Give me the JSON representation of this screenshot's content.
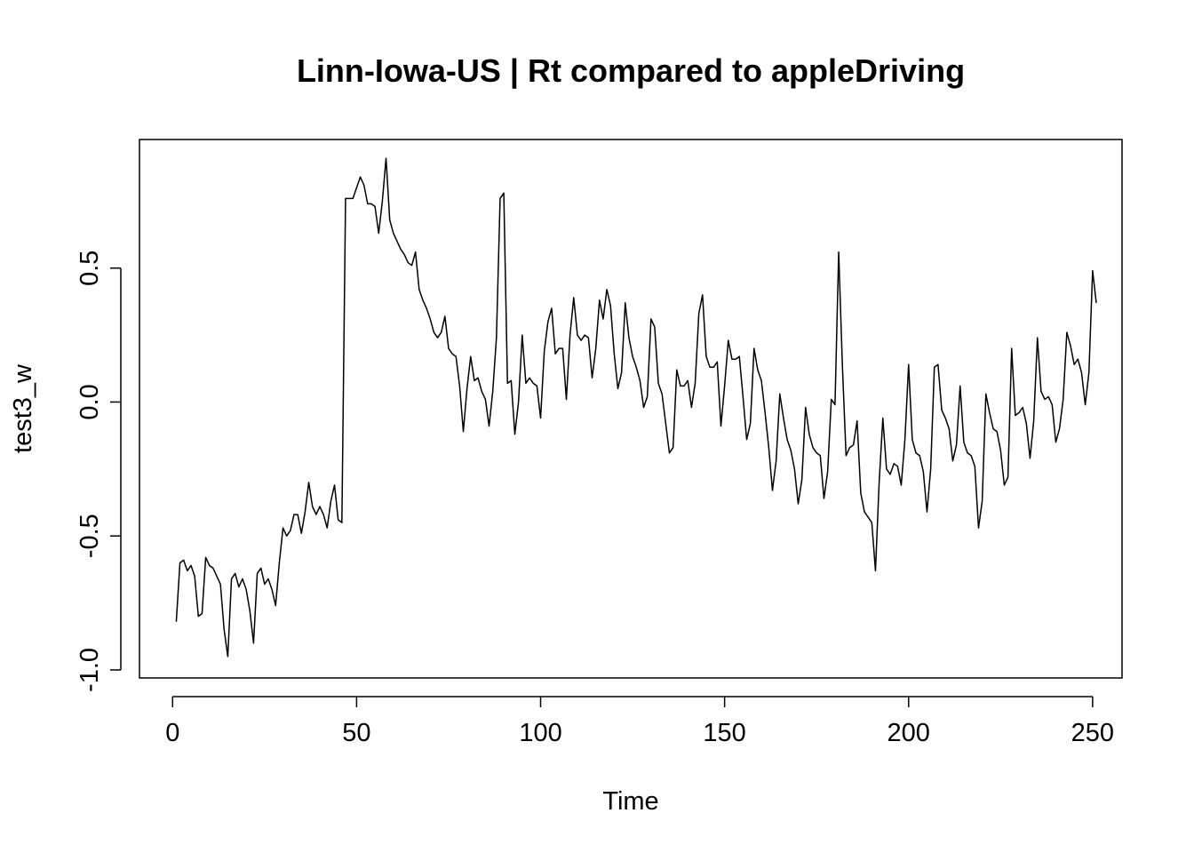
{
  "chart_data": {
    "type": "line",
    "title": "Linn-Iowa-US | Rt compared to appleDriving",
    "xlabel": "Time",
    "ylabel": "test3_w",
    "xlim": [
      -9,
      258
    ],
    "ylim": [
      -1.03,
      0.98
    ],
    "x_ticks": [
      0,
      50,
      100,
      150,
      200,
      250
    ],
    "x_tick_labels": [
      "0",
      "50",
      "100",
      "150",
      "200",
      "250"
    ],
    "y_ticks": [
      -1.0,
      -0.5,
      0.0,
      0.5
    ],
    "y_tick_labels": [
      "-1.0",
      "-0.5",
      "0.0",
      "0.5"
    ],
    "grid": false,
    "legend": "none",
    "line_color": "#000000",
    "x_start": 1,
    "series": [
      {
        "values": [
          -0.82,
          -0.6,
          -0.59,
          -0.63,
          -0.61,
          -0.65,
          -0.8,
          -0.79,
          -0.58,
          -0.61,
          -0.62,
          -0.65,
          -0.68,
          -0.85,
          -0.95,
          -0.66,
          -0.64,
          -0.69,
          -0.66,
          -0.7,
          -0.78,
          -0.9,
          -0.64,
          -0.62,
          -0.68,
          -0.66,
          -0.7,
          -0.76,
          -0.6,
          -0.47,
          -0.5,
          -0.48,
          -0.42,
          -0.42,
          -0.49,
          -0.41,
          -0.3,
          -0.39,
          -0.42,
          -0.39,
          -0.42,
          -0.47,
          -0.37,
          -0.31,
          -0.44,
          -0.45,
          0.76,
          0.76,
          0.76,
          0.8,
          0.84,
          0.81,
          0.74,
          0.74,
          0.73,
          0.63,
          0.75,
          0.91,
          0.68,
          0.63,
          0.6,
          0.57,
          0.55,
          0.52,
          0.51,
          0.56,
          0.42,
          0.38,
          0.35,
          0.31,
          0.26,
          0.24,
          0.26,
          0.32,
          0.2,
          0.18,
          0.17,
          0.06,
          -0.11,
          0.05,
          0.17,
          0.08,
          0.09,
          0.04,
          0.01,
          -0.09,
          0.04,
          0.24,
          0.76,
          0.78,
          0.07,
          0.08,
          -0.12,
          0.0,
          0.25,
          0.07,
          0.09,
          0.07,
          0.06,
          -0.06,
          0.19,
          0.3,
          0.35,
          0.18,
          0.2,
          0.2,
          0.01,
          0.25,
          0.39,
          0.25,
          0.23,
          0.25,
          0.24,
          0.09,
          0.2,
          0.38,
          0.31,
          0.42,
          0.36,
          0.18,
          0.05,
          0.11,
          0.37,
          0.24,
          0.17,
          0.13,
          0.08,
          -0.02,
          0.02,
          0.31,
          0.28,
          0.07,
          0.03,
          -0.08,
          -0.19,
          -0.17,
          0.12,
          0.06,
          0.06,
          0.08,
          -0.02,
          0.07,
          0.33,
          0.4,
          0.17,
          0.13,
          0.13,
          0.15,
          -0.09,
          0.06,
          0.23,
          0.16,
          0.16,
          0.17,
          0.02,
          -0.14,
          -0.08,
          0.2,
          0.12,
          0.08,
          -0.04,
          -0.17,
          -0.33,
          -0.22,
          0.03,
          -0.06,
          -0.14,
          -0.18,
          -0.25,
          -0.38,
          -0.29,
          -0.02,
          -0.12,
          -0.17,
          -0.19,
          -0.2,
          -0.36,
          -0.26,
          0.01,
          -0.01,
          0.56,
          0.14,
          -0.2,
          -0.17,
          -0.16,
          -0.07,
          -0.34,
          -0.41,
          -0.43,
          -0.45,
          -0.63,
          -0.3,
          -0.06,
          -0.25,
          -0.27,
          -0.23,
          -0.24,
          -0.31,
          -0.14,
          0.14,
          -0.14,
          -0.19,
          -0.2,
          -0.26,
          -0.41,
          -0.25,
          0.13,
          0.14,
          -0.03,
          -0.06,
          -0.1,
          -0.22,
          -0.16,
          0.06,
          -0.15,
          -0.19,
          -0.2,
          -0.24,
          -0.47,
          -0.37,
          0.03,
          -0.04,
          -0.1,
          -0.11,
          -0.18,
          -0.31,
          -0.28,
          0.2,
          -0.05,
          -0.04,
          -0.02,
          -0.08,
          -0.21,
          -0.07,
          0.24,
          0.04,
          0.01,
          0.02,
          -0.01,
          -0.15,
          -0.1,
          0.01,
          0.26,
          0.21,
          0.14,
          0.16,
          0.11,
          -0.01,
          0.11,
          0.49,
          0.37
        ]
      }
    ]
  }
}
